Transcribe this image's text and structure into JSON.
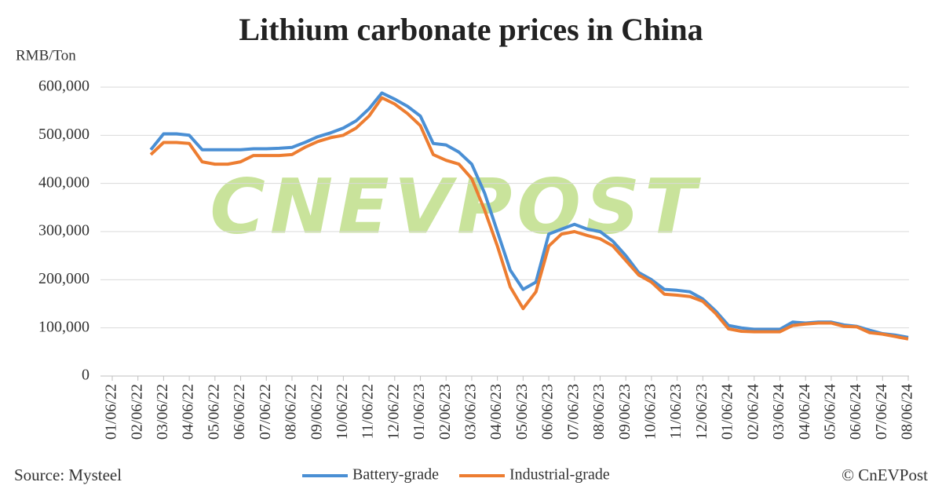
{
  "chart_data": {
    "type": "line",
    "title": "Lithium carbonate prices in China",
    "y_axis_label": "RMB/Ton",
    "source": "Source: Mysteel",
    "credit": "© CnEVPost",
    "watermark": "CNEVPOST",
    "categories": [
      "01/06/22",
      null,
      "02/06/22",
      null,
      "03/06/22",
      null,
      "04/06/22",
      null,
      "05/06/22",
      null,
      "06/06/22",
      null,
      "07/06/22",
      null,
      "08/06/22",
      null,
      "09/06/22",
      null,
      "10/06/22",
      null,
      "11/06/22",
      null,
      "12/06/22",
      null,
      "01/06/23",
      null,
      "02/06/23",
      null,
      "03/06/23",
      null,
      "04/06/23",
      null,
      "05/06/23",
      null,
      "06/06/23",
      null,
      "07/06/23",
      null,
      "08/06/23",
      null,
      "09/06/23",
      null,
      "10/06/23",
      null,
      "11/06/23",
      null,
      "12/06/23",
      null,
      "01/06/24",
      null,
      "02/06/24",
      null,
      "03/06/24",
      null,
      "04/06/24",
      null,
      "05/06/24",
      null,
      "06/06/24",
      null,
      "07/06/24",
      null,
      "08/06/24"
    ],
    "series": [
      {
        "name": "Battery-grade",
        "color": "#4a8fd4",
        "values": [
          null,
          null,
          null,
          470000,
          503000,
          503000,
          500000,
          470000,
          470000,
          470000,
          470000,
          472000,
          472000,
          473000,
          475000,
          485000,
          497000,
          505000,
          515000,
          530000,
          555000,
          588000,
          575000,
          560000,
          540000,
          483000,
          480000,
          465000,
          440000,
          380000,
          300000,
          220000,
          180000,
          195000,
          295000,
          305000,
          315000,
          305000,
          300000,
          280000,
          250000,
          215000,
          200000,
          180000,
          178000,
          175000,
          160000,
          135000,
          105000,
          100000,
          97000,
          97000,
          97000,
          112000,
          110000,
          112000,
          112000,
          106000,
          103000,
          95000,
          88000,
          85000,
          80000
        ]
      },
      {
        "name": "Industrial-grade",
        "color": "#ed7d31",
        "values": [
          null,
          null,
          null,
          460000,
          485000,
          485000,
          483000,
          445000,
          440000,
          440000,
          445000,
          458000,
          458000,
          458000,
          460000,
          475000,
          487000,
          495000,
          500000,
          515000,
          540000,
          578000,
          565000,
          545000,
          520000,
          460000,
          448000,
          440000,
          410000,
          345000,
          270000,
          185000,
          140000,
          175000,
          270000,
          295000,
          300000,
          292000,
          285000,
          270000,
          240000,
          210000,
          195000,
          170000,
          168000,
          165000,
          155000,
          130000,
          98000,
          93000,
          92000,
          92000,
          92000,
          105000,
          108000,
          110000,
          110000,
          103000,
          102000,
          90000,
          87000,
          82000,
          77000
        ]
      }
    ],
    "ylim": [
      0,
      600000
    ],
    "yticks": [
      0,
      {
        "value": 100000,
        "label": "100,000"
      },
      {
        "value": 200000,
        "label": "200,000"
      },
      {
        "value": 300000,
        "label": "300,000"
      },
      {
        "value": 400000,
        "label": "400,000"
      },
      {
        "value": 500000,
        "label": "500,000"
      },
      {
        "value": 600000,
        "label": "600,000"
      }
    ],
    "grid": true
  }
}
